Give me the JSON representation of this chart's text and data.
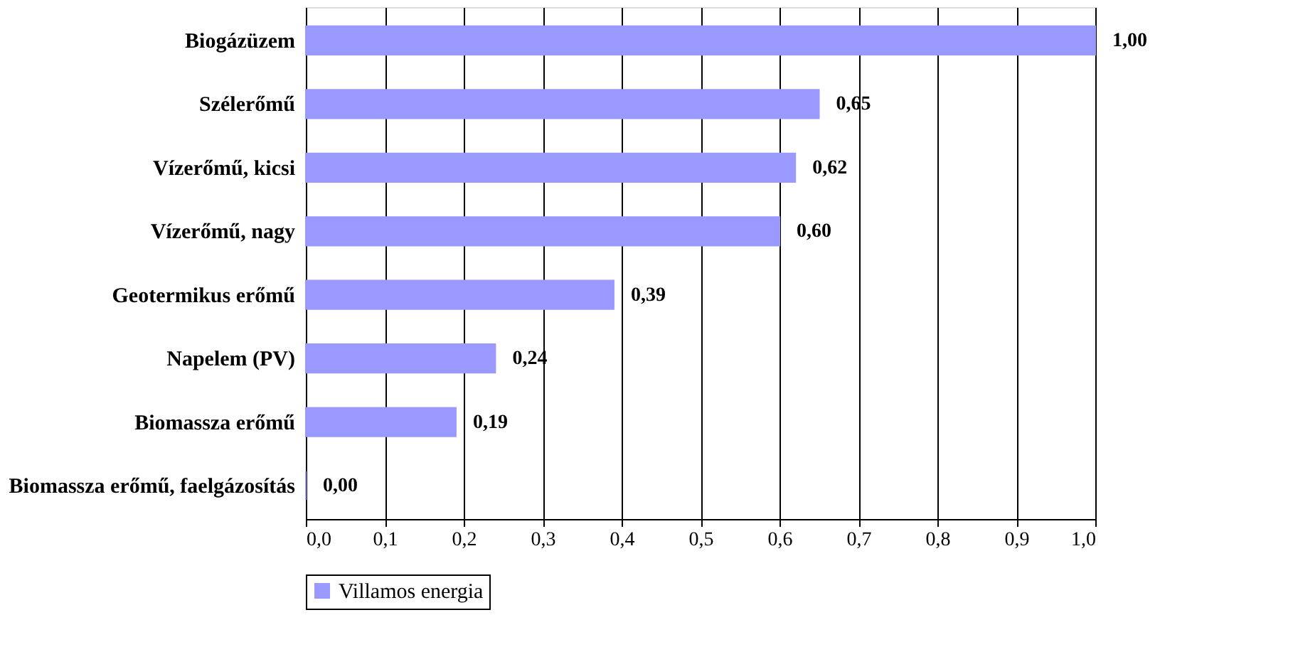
{
  "chart_data": {
    "type": "bar",
    "orientation": "horizontal",
    "categories": [
      "Biogázüzem",
      "Szélerőmű",
      "Vízerőmű, kicsi",
      "Vízerőmű, nagy",
      "Geotermikus erőmű",
      "Napelem (PV)",
      "Biomassza erőmű",
      "Biomassza erőmű, faelgázosítás"
    ],
    "series": [
      {
        "name": "Villamos energia",
        "color": "#9999ff",
        "values": [
          1.0,
          0.65,
          0.62,
          0.6,
          0.39,
          0.24,
          0.19,
          0.0
        ],
        "value_labels": [
          "1,00",
          "0,65",
          "0,62",
          "0,60",
          "0,39",
          "0,24",
          "0,19",
          "0,00"
        ]
      }
    ],
    "xlim": [
      0,
      1
    ],
    "xticks": [
      {
        "value": 0,
        "label": "0,0"
      },
      {
        "value": 0.1,
        "label": "0,1"
      },
      {
        "value": 0.2,
        "label": "0,2"
      },
      {
        "value": 0.3,
        "label": "0,3"
      },
      {
        "value": 0.4,
        "label": "0,4"
      },
      {
        "value": 0.5,
        "label": "0,5"
      },
      {
        "value": 0.6,
        "label": "0,6"
      },
      {
        "value": 0.7,
        "label": "0,7"
      },
      {
        "value": 0.8,
        "label": "0,8"
      },
      {
        "value": 0.9,
        "label": "0,9"
      },
      {
        "value": 1,
        "label": "1,0"
      }
    ],
    "grid": "x",
    "legend": "bottom"
  }
}
